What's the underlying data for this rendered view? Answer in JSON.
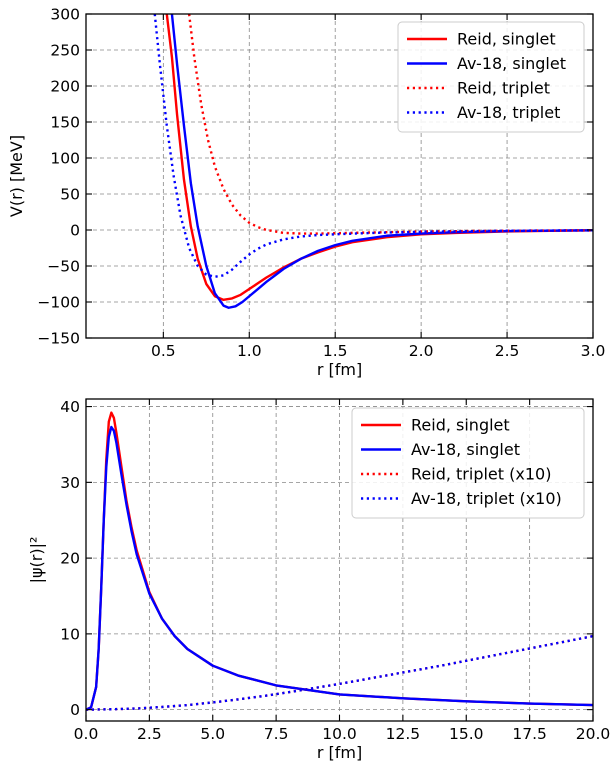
{
  "colors": {
    "reid": "#ff0000",
    "av18": "#0000ff"
  },
  "chart_data": [
    {
      "type": "line",
      "xlabel": "r [fm]",
      "ylabel": "V(r) [MeV]",
      "xlim": [
        0.05,
        3.0
      ],
      "ylim": [
        -150,
        300
      ],
      "xticks": [
        0.5,
        1.0,
        1.5,
        2.0,
        2.5,
        3.0
      ],
      "xtick_labels": [
        "0.5",
        "1.0",
        "1.5",
        "2.0",
        "2.5",
        "3.0"
      ],
      "yticks": [
        -150,
        -100,
        -50,
        0,
        50,
        100,
        150,
        200,
        250,
        300
      ],
      "ytick_labels": [
        "−150",
        "−100",
        "−50",
        "0",
        "50",
        "100",
        "150",
        "200",
        "250",
        "300"
      ],
      "grid": true,
      "legend_position": "top-right",
      "series": [
        {
          "name": "Reid, singlet",
          "color": "#ff0000",
          "style": "solid",
          "x": [
            0.52,
            0.55,
            0.58,
            0.62,
            0.66,
            0.7,
            0.75,
            0.8,
            0.85,
            0.9,
            0.95,
            1.0,
            1.05,
            1.1,
            1.15,
            1.2,
            1.3,
            1.4,
            1.5,
            1.6,
            1.8,
            2.0,
            2.2,
            2.5,
            2.8,
            3.0
          ],
          "y": [
            300,
            240,
            160,
            70,
            5,
            -40,
            -75,
            -92,
            -97,
            -95,
            -90,
            -82,
            -74,
            -66,
            -59,
            -52,
            -40,
            -31,
            -23,
            -17,
            -10,
            -6,
            -4,
            -2,
            -1,
            -0.5
          ]
        },
        {
          "name": "Av-18, singlet",
          "color": "#0000ff",
          "style": "solid",
          "x": [
            0.55,
            0.58,
            0.62,
            0.66,
            0.7,
            0.75,
            0.8,
            0.85,
            0.88,
            0.92,
            0.96,
            1.0,
            1.05,
            1.1,
            1.15,
            1.2,
            1.3,
            1.4,
            1.5,
            1.6,
            1.8,
            2.0,
            2.2,
            2.5,
            2.8,
            3.0
          ],
          "y": [
            300,
            230,
            145,
            65,
            5,
            -50,
            -88,
            -105,
            -108,
            -106,
            -100,
            -92,
            -82,
            -72,
            -63,
            -54,
            -40,
            -29,
            -21,
            -15,
            -8,
            -5,
            -3,
            -1.5,
            -0.8,
            -0.5
          ]
        },
        {
          "name": "Reid, triplet",
          "color": "#ff0000",
          "style": "dotted",
          "x": [
            0.65,
            0.68,
            0.72,
            0.76,
            0.8,
            0.85,
            0.9,
            0.95,
            1.0,
            1.05,
            1.1,
            1.2,
            1.3,
            1.4,
            1.6,
            1.8,
            2.0,
            2.5,
            3.0
          ],
          "y": [
            300,
            240,
            175,
            125,
            88,
            57,
            35,
            20,
            10,
            4,
            0,
            -4,
            -5,
            -5,
            -4,
            -3,
            -2,
            -1,
            -0.5
          ]
        },
        {
          "name": "Av-18, triplet",
          "color": "#0000ff",
          "style": "dotted",
          "x": [
            0.45,
            0.48,
            0.52,
            0.56,
            0.6,
            0.65,
            0.7,
            0.75,
            0.8,
            0.85,
            0.9,
            0.95,
            1.0,
            1.05,
            1.1,
            1.2,
            1.3,
            1.4,
            1.6,
            1.8,
            2.0,
            2.5,
            3.0
          ],
          "y": [
            300,
            230,
            145,
            75,
            20,
            -25,
            -50,
            -62,
            -65,
            -63,
            -55,
            -44,
            -34,
            -26,
            -20,
            -13,
            -9,
            -7,
            -5,
            -3.5,
            -2.5,
            -1,
            -0.5
          ]
        }
      ]
    },
    {
      "type": "line",
      "xlabel": "r [fm]",
      "ylabel": "|ψ(r)|²",
      "xlim": [
        0.0,
        20.0
      ],
      "ylim": [
        -1.5,
        41
      ],
      "xticks": [
        0,
        2.5,
        5,
        7.5,
        10,
        12.5,
        15,
        17.5,
        20
      ],
      "xtick_labels": [
        "0.0",
        "2.5",
        "5.0",
        "7.5",
        "10.0",
        "12.5",
        "15.0",
        "17.5",
        "20.0"
      ],
      "yticks": [
        0,
        10,
        20,
        30,
        40
      ],
      "ytick_labels": [
        "0",
        "10",
        "20",
        "30",
        "40"
      ],
      "grid": true,
      "legend_position": "top-right",
      "series": [
        {
          "name": "Reid, singlet",
          "color": "#ff0000",
          "style": "solid",
          "x": [
            0,
            0.2,
            0.4,
            0.5,
            0.6,
            0.7,
            0.8,
            0.9,
            1.0,
            1.1,
            1.2,
            1.4,
            1.6,
            1.8,
            2.0,
            2.5,
            3.0,
            3.5,
            4.0,
            5.0,
            6.0,
            7.5,
            10.0,
            12.5,
            15.0,
            17.5,
            20.0
          ],
          "y": [
            0,
            0.3,
            3,
            8,
            16,
            25,
            33,
            38,
            39.2,
            38.5,
            36.5,
            32,
            27.5,
            24,
            21,
            15.5,
            12,
            9.7,
            8.0,
            5.8,
            4.5,
            3.2,
            2.0,
            1.5,
            1.1,
            0.8,
            0.6
          ]
        },
        {
          "name": "Av-18, singlet",
          "color": "#0000ff",
          "style": "solid",
          "x": [
            0,
            0.2,
            0.4,
            0.5,
            0.6,
            0.7,
            0.8,
            0.9,
            1.0,
            1.1,
            1.2,
            1.4,
            1.6,
            1.8,
            2.0,
            2.5,
            3.0,
            3.5,
            4.0,
            5.0,
            6.0,
            7.5,
            10.0,
            12.5,
            15.0,
            17.5,
            20.0
          ],
          "y": [
            0,
            0.3,
            3,
            8,
            16,
            25,
            32,
            36,
            37.3,
            36.8,
            35.2,
            31,
            27,
            23.5,
            20.5,
            15.3,
            12,
            9.7,
            8.0,
            5.8,
            4.5,
            3.2,
            2.0,
            1.5,
            1.1,
            0.8,
            0.6
          ]
        },
        {
          "name": "Reid, triplet (x10)",
          "color": "#ff0000",
          "style": "dotted",
          "x": [
            0,
            1,
            2,
            3,
            4,
            5,
            6,
            7,
            8,
            9,
            10,
            11,
            12,
            13,
            14,
            15,
            16,
            17,
            18,
            19,
            20
          ],
          "y": [
            0,
            0.05,
            0.15,
            0.35,
            0.6,
            0.95,
            1.35,
            1.8,
            2.3,
            2.85,
            3.4,
            4.0,
            4.6,
            5.2,
            5.8,
            6.45,
            7.1,
            7.75,
            8.4,
            9.05,
            9.7
          ]
        },
        {
          "name": "Av-18, triplet (x10)",
          "color": "#0000ff",
          "style": "dotted",
          "x": [
            0,
            1,
            2,
            3,
            4,
            5,
            6,
            7,
            8,
            9,
            10,
            11,
            12,
            13,
            14,
            15,
            16,
            17,
            18,
            19,
            20
          ],
          "y": [
            0,
            0.05,
            0.15,
            0.35,
            0.6,
            0.95,
            1.35,
            1.8,
            2.3,
            2.85,
            3.4,
            4.0,
            4.6,
            5.2,
            5.8,
            6.45,
            7.1,
            7.75,
            8.4,
            9.05,
            9.7
          ]
        }
      ]
    }
  ]
}
